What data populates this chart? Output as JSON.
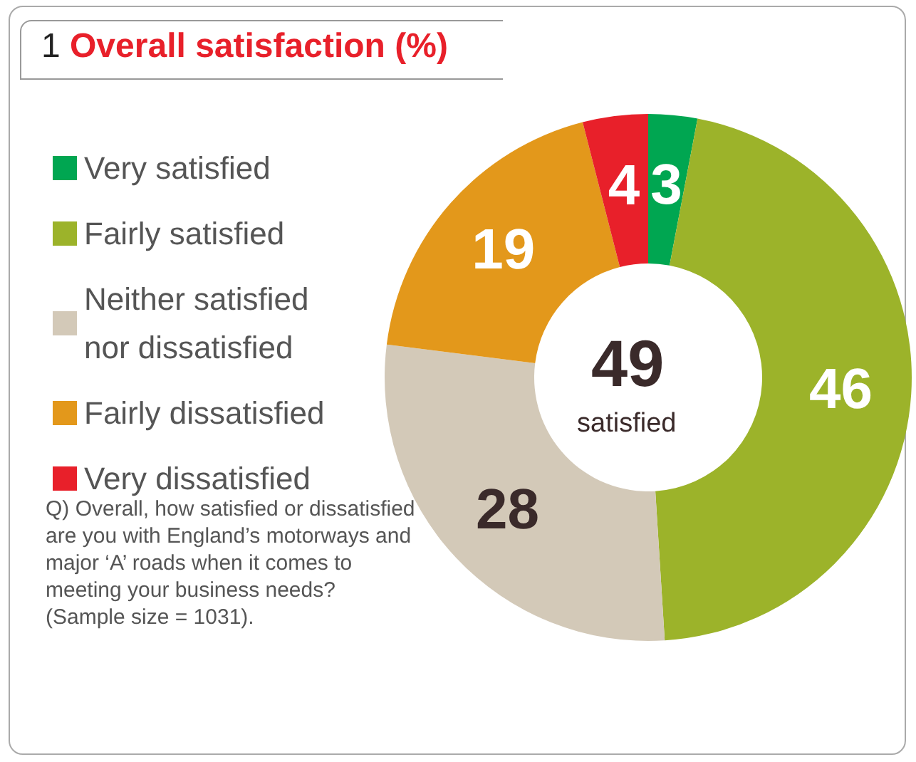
{
  "chart_data": {
    "type": "donut",
    "title": "1 Overall satisfaction (%)",
    "categories": [
      "Very satisfied",
      "Fairly satisfied",
      "Neither satisfied nor dissatisfied",
      "Fairly dissatisfied",
      "Very dissatisfied"
    ],
    "values": [
      3,
      46,
      28,
      19,
      4
    ],
    "colors": [
      "#00a651",
      "#9cb32a",
      "#d3c9b8",
      "#e3981b",
      "#e8202a"
    ],
    "data_labels": true,
    "legend": "left",
    "annotations": [
      "49",
      "satisfied",
      "Q) Overall, how satisfied or dissatisfied are you with England’s motorways and major ‘A’ roads when it comes to meeting your business needs? (Sample size = 1031)."
    ]
  }
}
